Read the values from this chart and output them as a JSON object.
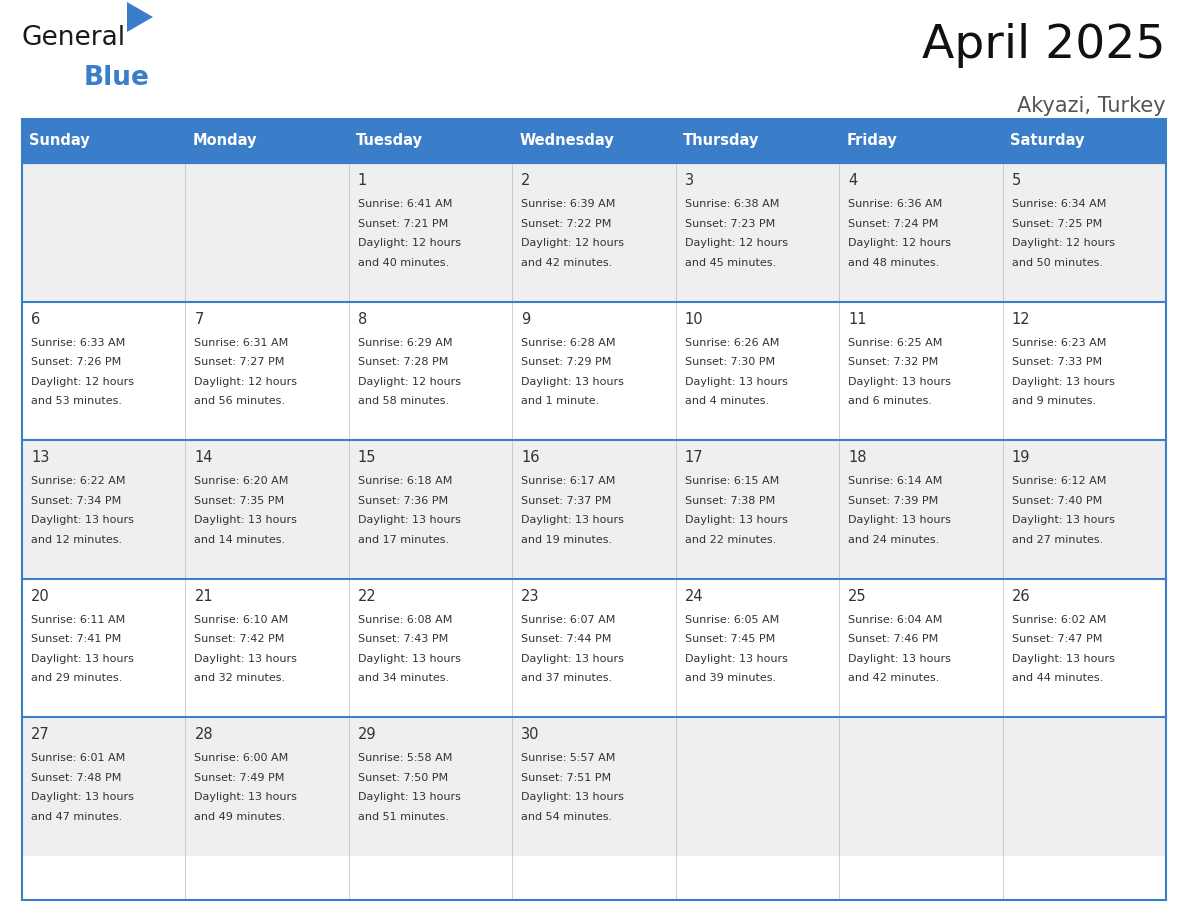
{
  "title": "April 2025",
  "subtitle": "Akyazi, Turkey",
  "header_bg_color": "#3A7DC9",
  "header_text_color": "#FFFFFF",
  "cell_bg_row0": "#EFEFEF",
  "cell_bg_row1": "#FFFFFF",
  "border_color": "#3A7DC9",
  "text_color": "#333333",
  "days_of_week": [
    "Sunday",
    "Monday",
    "Tuesday",
    "Wednesday",
    "Thursday",
    "Friday",
    "Saturday"
  ],
  "calendar_data": [
    [
      {
        "day": "",
        "sunrise": "",
        "sunset": "",
        "daylight": ""
      },
      {
        "day": "",
        "sunrise": "",
        "sunset": "",
        "daylight": ""
      },
      {
        "day": "1",
        "sunrise": "6:41 AM",
        "sunset": "7:21 PM",
        "daylight": "12 hours\nand 40 minutes."
      },
      {
        "day": "2",
        "sunrise": "6:39 AM",
        "sunset": "7:22 PM",
        "daylight": "12 hours\nand 42 minutes."
      },
      {
        "day": "3",
        "sunrise": "6:38 AM",
        "sunset": "7:23 PM",
        "daylight": "12 hours\nand 45 minutes."
      },
      {
        "day": "4",
        "sunrise": "6:36 AM",
        "sunset": "7:24 PM",
        "daylight": "12 hours\nand 48 minutes."
      },
      {
        "day": "5",
        "sunrise": "6:34 AM",
        "sunset": "7:25 PM",
        "daylight": "12 hours\nand 50 minutes."
      }
    ],
    [
      {
        "day": "6",
        "sunrise": "6:33 AM",
        "sunset": "7:26 PM",
        "daylight": "12 hours\nand 53 minutes."
      },
      {
        "day": "7",
        "sunrise": "6:31 AM",
        "sunset": "7:27 PM",
        "daylight": "12 hours\nand 56 minutes."
      },
      {
        "day": "8",
        "sunrise": "6:29 AM",
        "sunset": "7:28 PM",
        "daylight": "12 hours\nand 58 minutes."
      },
      {
        "day": "9",
        "sunrise": "6:28 AM",
        "sunset": "7:29 PM",
        "daylight": "13 hours\nand 1 minute."
      },
      {
        "day": "10",
        "sunrise": "6:26 AM",
        "sunset": "7:30 PM",
        "daylight": "13 hours\nand 4 minutes."
      },
      {
        "day": "11",
        "sunrise": "6:25 AM",
        "sunset": "7:32 PM",
        "daylight": "13 hours\nand 6 minutes."
      },
      {
        "day": "12",
        "sunrise": "6:23 AM",
        "sunset": "7:33 PM",
        "daylight": "13 hours\nand 9 minutes."
      }
    ],
    [
      {
        "day": "13",
        "sunrise": "6:22 AM",
        "sunset": "7:34 PM",
        "daylight": "13 hours\nand 12 minutes."
      },
      {
        "day": "14",
        "sunrise": "6:20 AM",
        "sunset": "7:35 PM",
        "daylight": "13 hours\nand 14 minutes."
      },
      {
        "day": "15",
        "sunrise": "6:18 AM",
        "sunset": "7:36 PM",
        "daylight": "13 hours\nand 17 minutes."
      },
      {
        "day": "16",
        "sunrise": "6:17 AM",
        "sunset": "7:37 PM",
        "daylight": "13 hours\nand 19 minutes."
      },
      {
        "day": "17",
        "sunrise": "6:15 AM",
        "sunset": "7:38 PM",
        "daylight": "13 hours\nand 22 minutes."
      },
      {
        "day": "18",
        "sunrise": "6:14 AM",
        "sunset": "7:39 PM",
        "daylight": "13 hours\nand 24 minutes."
      },
      {
        "day": "19",
        "sunrise": "6:12 AM",
        "sunset": "7:40 PM",
        "daylight": "13 hours\nand 27 minutes."
      }
    ],
    [
      {
        "day": "20",
        "sunrise": "6:11 AM",
        "sunset": "7:41 PM",
        "daylight": "13 hours\nand 29 minutes."
      },
      {
        "day": "21",
        "sunrise": "6:10 AM",
        "sunset": "7:42 PM",
        "daylight": "13 hours\nand 32 minutes."
      },
      {
        "day": "22",
        "sunrise": "6:08 AM",
        "sunset": "7:43 PM",
        "daylight": "13 hours\nand 34 minutes."
      },
      {
        "day": "23",
        "sunrise": "6:07 AM",
        "sunset": "7:44 PM",
        "daylight": "13 hours\nand 37 minutes."
      },
      {
        "day": "24",
        "sunrise": "6:05 AM",
        "sunset": "7:45 PM",
        "daylight": "13 hours\nand 39 minutes."
      },
      {
        "day": "25",
        "sunrise": "6:04 AM",
        "sunset": "7:46 PM",
        "daylight": "13 hours\nand 42 minutes."
      },
      {
        "day": "26",
        "sunrise": "6:02 AM",
        "sunset": "7:47 PM",
        "daylight": "13 hours\nand 44 minutes."
      }
    ],
    [
      {
        "day": "27",
        "sunrise": "6:01 AM",
        "sunset": "7:48 PM",
        "daylight": "13 hours\nand 47 minutes."
      },
      {
        "day": "28",
        "sunrise": "6:00 AM",
        "sunset": "7:49 PM",
        "daylight": "13 hours\nand 49 minutes."
      },
      {
        "day": "29",
        "sunrise": "5:58 AM",
        "sunset": "7:50 PM",
        "daylight": "13 hours\nand 51 minutes."
      },
      {
        "day": "30",
        "sunrise": "5:57 AM",
        "sunset": "7:51 PM",
        "daylight": "13 hours\nand 54 minutes."
      },
      {
        "day": "",
        "sunrise": "",
        "sunset": "",
        "daylight": ""
      },
      {
        "day": "",
        "sunrise": "",
        "sunset": "",
        "daylight": ""
      },
      {
        "day": "",
        "sunrise": "",
        "sunset": "",
        "daylight": ""
      }
    ]
  ],
  "logo_text1": "General",
  "logo_text2": "Blue",
  "logo_color1": "#1a1a1a",
  "logo_color2": "#3A7DC9",
  "fig_width": 11.88,
  "fig_height": 9.18,
  "dpi": 100
}
